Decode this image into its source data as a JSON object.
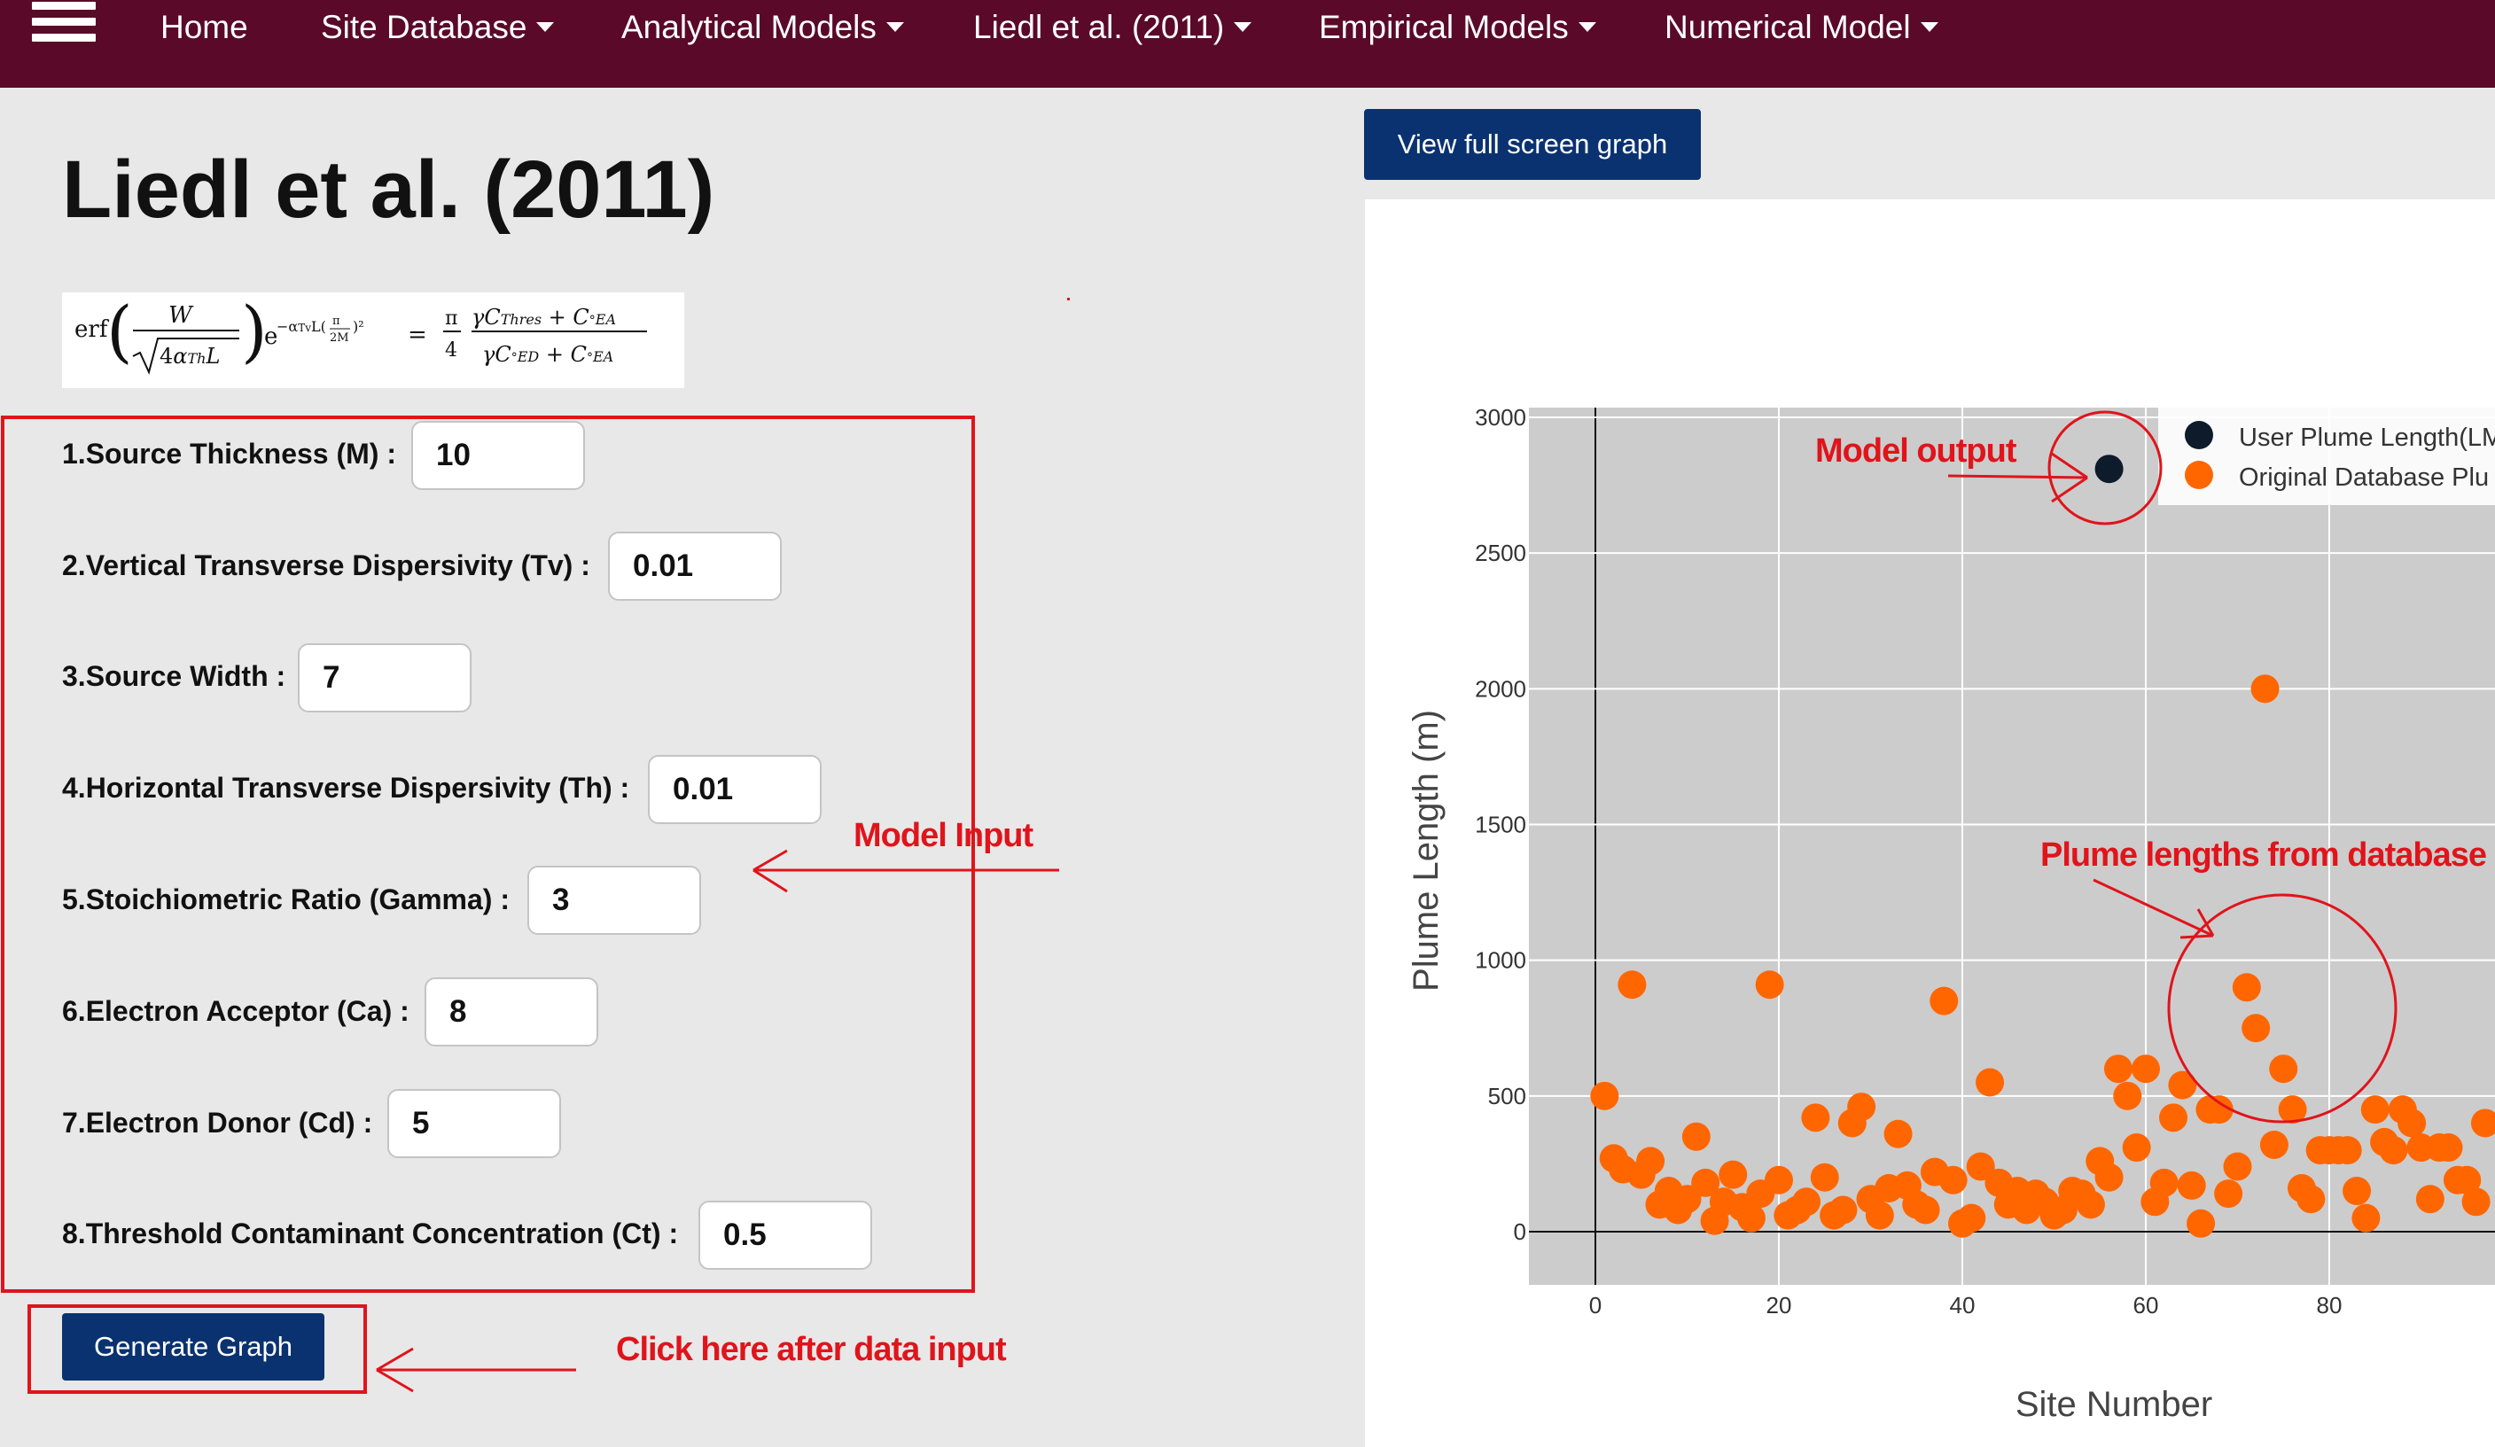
{
  "nav": {
    "menu_icon": "hamburger-menu-icon",
    "items": [
      {
        "label": "Home",
        "dropdown": false
      },
      {
        "label": "Site Database",
        "dropdown": true
      },
      {
        "label": "Analytical Models",
        "dropdown": true
      },
      {
        "label": "Liedl et al. (2011)",
        "dropdown": true
      },
      {
        "label": "Empirical Models",
        "dropdown": true
      },
      {
        "label": "Numerical Model",
        "dropdown": true
      }
    ]
  },
  "page": {
    "title": "Liedl et al. (2011)"
  },
  "formula": {
    "latex": "erf(W / sqrt(4 alpha_Th L)) e^(-alpha_Tv L (pi/2M)^2) = (pi/4) (gamma C_Thres + C_EA) / (gamma C_ED + C_EA)"
  },
  "form": {
    "fields": [
      {
        "label": "1.Source Thickness (M) :",
        "value": "10"
      },
      {
        "label": "2.Vertical Transverse Dispersivity (Tv) :",
        "value": "0.01"
      },
      {
        "label": "3.Source Width :",
        "value": "7"
      },
      {
        "label": "4.Horizontal Transverse Dispersivity (Th) :",
        "value": "0.01"
      },
      {
        "label": "5.Stoichiometric Ratio (Gamma) :",
        "value": "3"
      },
      {
        "label": "6.Electron Acceptor (Ca) :",
        "value": "8"
      },
      {
        "label": "7.Electron Donor (Cd) :",
        "value": "5"
      },
      {
        "label": "8.Threshold Contaminant Concentration (Ct) :",
        "value": "0.5"
      }
    ],
    "submit_label": "Generate Graph"
  },
  "graph": {
    "fullscreen_label": "View full screen graph"
  },
  "annotations": {
    "model_input": "Model Input",
    "click_here": "Click here after data input",
    "model_output": "Model output",
    "plume_lengths": "Plume lengths from database"
  },
  "colors": {
    "navbar": "#5a0a28",
    "button": "#0a3270",
    "annotation": "#e0141b",
    "user_point": "#0d1b2a",
    "database_point": "#ff6600",
    "plot_background": "#cccccc"
  },
  "chart_data": {
    "type": "scatter",
    "xlabel": "Site Number",
    "ylabel": "Plume Length (m)",
    "xlim": [
      -7,
      98
    ],
    "ylim": [
      -200,
      3050
    ],
    "xticks": [
      0,
      20,
      40,
      60,
      80
    ],
    "yticks": [
      0,
      500,
      1000,
      1500,
      2000,
      2500,
      3000
    ],
    "grid": true,
    "legend_position": "top-right",
    "series": [
      {
        "name": "User Plume Length(LM",
        "color": "#0d1b2a",
        "points": [
          [
            56,
            2810
          ]
        ]
      },
      {
        "name": "Original Database Plu",
        "color": "#ff6600",
        "points": [
          [
            1,
            500
          ],
          [
            2,
            270
          ],
          [
            3,
            230
          ],
          [
            4,
            910
          ],
          [
            5,
            210
          ],
          [
            6,
            260
          ],
          [
            7,
            100
          ],
          [
            8,
            150
          ],
          [
            9,
            80
          ],
          [
            10,
            120
          ],
          [
            11,
            350
          ],
          [
            12,
            180
          ],
          [
            13,
            40
          ],
          [
            14,
            110
          ],
          [
            15,
            210
          ],
          [
            16,
            90
          ],
          [
            17,
            50
          ],
          [
            18,
            140
          ],
          [
            19,
            910
          ],
          [
            20,
            190
          ],
          [
            21,
            60
          ],
          [
            22,
            80
          ],
          [
            23,
            110
          ],
          [
            24,
            420
          ],
          [
            25,
            200
          ],
          [
            26,
            60
          ],
          [
            27,
            80
          ],
          [
            28,
            400
          ],
          [
            29,
            460
          ],
          [
            30,
            120
          ],
          [
            31,
            60
          ],
          [
            32,
            160
          ],
          [
            33,
            360
          ],
          [
            34,
            170
          ],
          [
            35,
            100
          ],
          [
            36,
            80
          ],
          [
            37,
            220
          ],
          [
            38,
            850
          ],
          [
            39,
            190
          ],
          [
            40,
            30
          ],
          [
            41,
            50
          ],
          [
            42,
            240
          ],
          [
            43,
            550
          ],
          [
            44,
            180
          ],
          [
            45,
            100
          ],
          [
            46,
            150
          ],
          [
            47,
            80
          ],
          [
            48,
            140
          ],
          [
            49,
            110
          ],
          [
            50,
            60
          ],
          [
            51,
            80
          ],
          [
            52,
            150
          ],
          [
            53,
            140
          ],
          [
            54,
            100
          ],
          [
            55,
            260
          ],
          [
            56,
            200
          ],
          [
            57,
            600
          ],
          [
            58,
            500
          ],
          [
            59,
            310
          ],
          [
            60,
            600
          ],
          [
            61,
            110
          ],
          [
            62,
            180
          ],
          [
            63,
            420
          ],
          [
            64,
            540
          ],
          [
            65,
            170
          ],
          [
            66,
            30
          ],
          [
            67,
            450
          ],
          [
            68,
            450
          ],
          [
            69,
            140
          ],
          [
            70,
            240
          ],
          [
            71,
            900
          ],
          [
            72,
            750
          ],
          [
            73,
            2000
          ],
          [
            74,
            320
          ],
          [
            75,
            600
          ],
          [
            76,
            450
          ],
          [
            77,
            160
          ],
          [
            78,
            120
          ],
          [
            79,
            300
          ],
          [
            80,
            300
          ],
          [
            81,
            300
          ],
          [
            82,
            300
          ],
          [
            83,
            150
          ],
          [
            84,
            50
          ],
          [
            85,
            450
          ],
          [
            86,
            330
          ],
          [
            87,
            300
          ],
          [
            88,
            450
          ],
          [
            89,
            400
          ],
          [
            90,
            310
          ],
          [
            91,
            120
          ],
          [
            92,
            310
          ],
          [
            93,
            310
          ],
          [
            94,
            190
          ],
          [
            95,
            190
          ],
          [
            96,
            110
          ],
          [
            97,
            400
          ]
        ]
      }
    ]
  }
}
